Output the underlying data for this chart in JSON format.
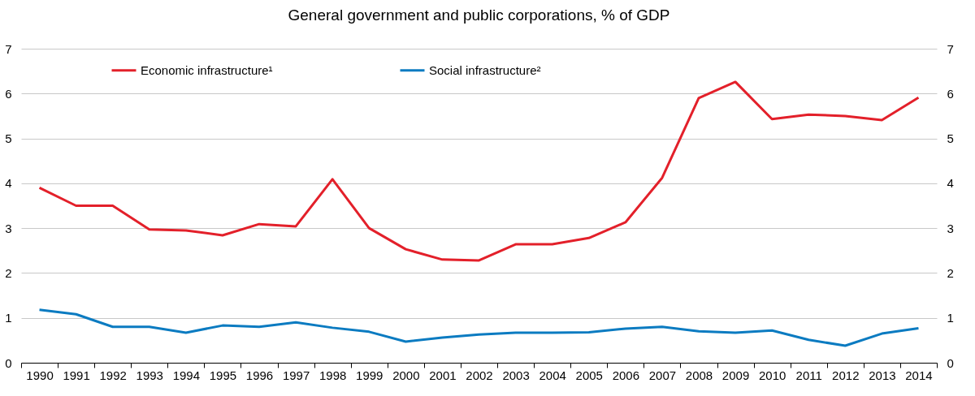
{
  "chart_data": {
    "type": "line",
    "title": "General government and public corporations, % of GDP",
    "categories": [
      "1990",
      "1991",
      "1992",
      "1993",
      "1994",
      "1995",
      "1996",
      "1997",
      "1998",
      "1999",
      "2000",
      "2001",
      "2002",
      "2003",
      "2004",
      "2005",
      "2006",
      "2007",
      "2008",
      "2009",
      "2010",
      "2011",
      "2012",
      "2013",
      "2014"
    ],
    "series": [
      {
        "name": "Economic infrastructure¹",
        "color": "#e3202a",
        "values": [
          3.9,
          3.5,
          3.5,
          2.97,
          2.95,
          2.84,
          3.09,
          3.04,
          4.09,
          3.0,
          2.53,
          2.3,
          2.28,
          2.64,
          2.64,
          2.78,
          3.13,
          4.12,
          5.9,
          6.26,
          5.43,
          5.53,
          5.5,
          5.41,
          5.91
        ]
      },
      {
        "name": "Social infrastructure²",
        "color": "#0b7bc1",
        "values": [
          1.18,
          1.08,
          0.8,
          0.8,
          0.67,
          0.83,
          0.8,
          0.9,
          0.78,
          0.69,
          0.47,
          0.56,
          0.63,
          0.67,
          0.67,
          0.68,
          0.76,
          0.8,
          0.7,
          0.67,
          0.72,
          0.51,
          0.38,
          0.65,
          0.77
        ]
      }
    ],
    "ylim": [
      0,
      7
    ],
    "yticks": [
      0,
      1,
      2,
      3,
      4,
      5,
      6,
      7
    ],
    "y2lim": [
      0,
      7
    ],
    "y2ticks": [
      0,
      1,
      2,
      3,
      4,
      5,
      6,
      7
    ],
    "grid": "y",
    "legend": "top left"
  }
}
